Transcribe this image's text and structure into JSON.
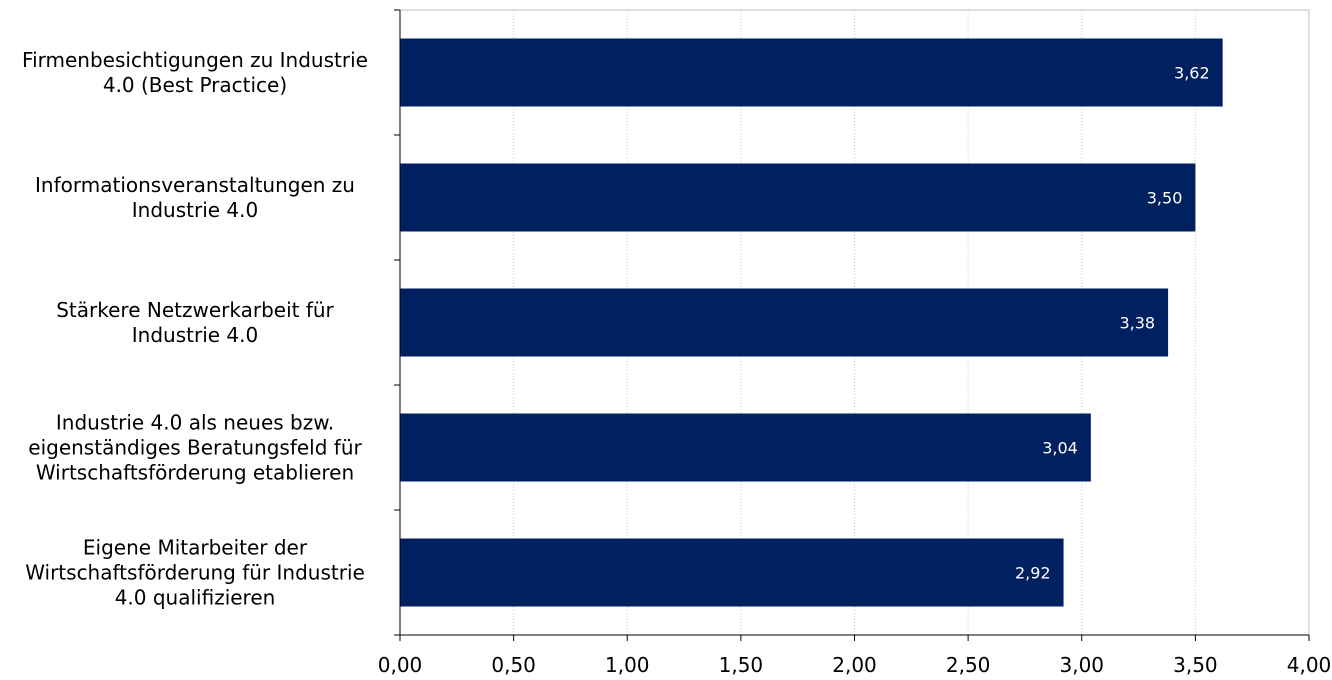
{
  "chart_data": {
    "type": "bar",
    "orientation": "horizontal",
    "categories": [
      [
        "Firmenbesichtigungen zu Industrie",
        "4.0 (Best Practice)"
      ],
      [
        "Informationsveranstaltungen zu",
        "Industrie 4.0"
      ],
      [
        "Stärkere Netzwerkarbeit für",
        "Industrie 4.0"
      ],
      [
        "Industrie 4.0 als neues bzw.",
        "eigenständiges Beratungsfeld für",
        "Wirtschaftsförderung etablieren"
      ],
      [
        "Eigene Mitarbeiter der",
        "Wirtschaftsförderung für Industrie",
        "4.0 qualifizieren"
      ]
    ],
    "values": [
      3.62,
      3.5,
      3.38,
      3.04,
      2.92
    ],
    "data_labels": [
      "3,62",
      "3,50",
      "3,38",
      "3,04",
      "2,92"
    ],
    "xlim": [
      0,
      4
    ],
    "x_ticks": [
      "0,00",
      "0,50",
      "1,00",
      "1,50",
      "2,00",
      "2,50",
      "3,00",
      "3,50",
      "4,00"
    ],
    "grid": "vertical dotted",
    "bar_color": "#002060",
    "label_color": "#ffffff",
    "title": "",
    "xlabel": "",
    "ylabel": ""
  }
}
